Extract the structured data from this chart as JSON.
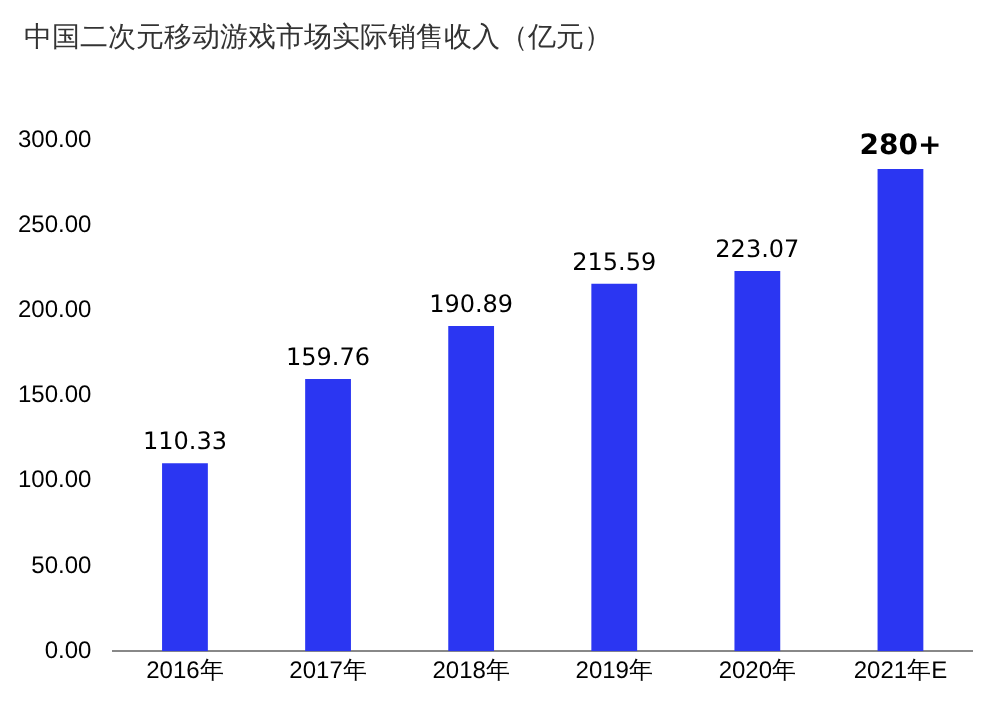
{
  "chart_data": {
    "type": "bar",
    "title": "中国二次元移动游戏市场实际销售收入（亿元）",
    "categories": [
      "2016年",
      "2017年",
      "2018年",
      "2019年",
      "2020年",
      "2021年E"
    ],
    "values": [
      110.33,
      159.76,
      190.89,
      215.59,
      223.07,
      283
    ],
    "value_labels": [
      "110.33",
      "159.76",
      "190.89",
      "215.59",
      "223.07",
      "280+"
    ],
    "color": "#2b36f2",
    "ylim": [
      0,
      300
    ],
    "yticks": [
      {
        "value": 0,
        "label": "0.00"
      },
      {
        "value": 50,
        "label": "50.00"
      },
      {
        "value": 100,
        "label": "100.00"
      },
      {
        "value": 150,
        "label": "150.00"
      },
      {
        "value": 200,
        "label": "200.00"
      },
      {
        "value": 250,
        "label": "250.00"
      },
      {
        "value": 300,
        "label": "300.00"
      }
    ],
    "grid": false,
    "legend": false
  }
}
